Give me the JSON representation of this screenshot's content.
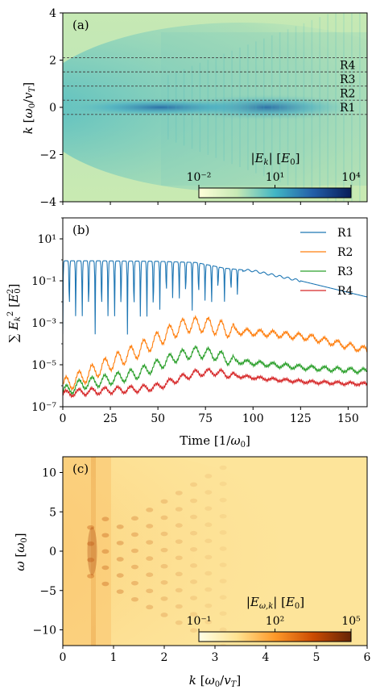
{
  "chart_data": [
    {
      "type": "heatmap",
      "panel_label": "(a)",
      "xlabel": "",
      "ylabel": "k [ω0/vT]",
      "ylim": [
        -4,
        4
      ],
      "xlim": [
        0,
        160
      ],
      "yticks": [
        "−4",
        "−2",
        "0",
        "2",
        "4"
      ],
      "colorbar": {
        "label": "|Ek| [E0]",
        "ticks": [
          "10⁻²",
          "10¹",
          "10⁴"
        ],
        "range_log10": [
          -2,
          4
        ],
        "colormap": "YlGnBu"
      },
      "regions": [
        {
          "name": "R1",
          "k_bounds": [
            -0.3,
            0.3
          ]
        },
        {
          "name": "R2",
          "k_bounds": [
            0.3,
            0.9
          ]
        },
        {
          "name": "R3",
          "k_bounds": [
            0.9,
            1.5
          ]
        },
        {
          "name": "R4",
          "k_bounds": [
            1.5,
            2.1
          ]
        }
      ],
      "dashed_lines_k": [
        2.1,
        1.5,
        0.9,
        0.3,
        -0.3
      ]
    },
    {
      "type": "line",
      "panel_label": "(b)",
      "xlabel": "Time [1/ω0]",
      "ylabel": "Σ Ek² [E0²]",
      "ylog": true,
      "ylim": [
        1e-07,
        100
      ],
      "xlim": [
        0,
        160
      ],
      "xticks": [
        "0",
        "25",
        "50",
        "75",
        "100",
        "125",
        "150"
      ],
      "xtick_values": [
        0,
        25,
        50,
        75,
        100,
        125,
        150
      ],
      "yticks": [
        "10⁻⁷",
        "10⁻⁵",
        "10⁻³",
        "10⁻¹",
        "10¹"
      ],
      "legend_position": "top-right",
      "series": [
        {
          "name": "R1",
          "color": "#1f77b4",
          "x": [
            0,
            20,
            50,
            70,
            85,
            100,
            125,
            160
          ],
          "y": [
            0.9,
            0.9,
            0.85,
            0.75,
            0.4,
            0.3,
            0.1,
            0.017
          ]
        },
        {
          "name": "R2",
          "color": "#ff7f0e",
          "x": [
            0,
            10,
            25,
            40,
            55,
            65,
            75,
            90,
            110,
            130,
            160
          ],
          "y": [
            1e-06,
            2.5e-06,
            1.2e-05,
            5e-05,
            0.0003,
            0.0008,
            0.0008,
            0.0004,
            0.0003,
            0.0002,
            5e-05
          ]
        },
        {
          "name": "R3",
          "color": "#2ca02c",
          "x": [
            0,
            10,
            25,
            40,
            50,
            60,
            70,
            80,
            90,
            110,
            130,
            160
          ],
          "y": [
            5e-07,
            1.2e-06,
            2e-06,
            4e-06,
            1e-05,
            2.5e-05,
            4e-05,
            3e-05,
            1.5e-05,
            1e-05,
            7e-06,
            5e-06
          ]
        },
        {
          "name": "R4",
          "color": "#d62728",
          "x": [
            0,
            10,
            25,
            40,
            50,
            60,
            70,
            80,
            90,
            110,
            130,
            160
          ],
          "y": [
            4e-07,
            5e-07,
            6e-07,
            7e-07,
            9e-07,
            2e-06,
            4e-06,
            4.5e-06,
            3e-06,
            2e-06,
            1.5e-06,
            1.2e-06
          ]
        }
      ]
    },
    {
      "type": "heatmap",
      "panel_label": "(c)",
      "xlabel": "k [ω0/vT]",
      "ylabel": "ω [ω0]",
      "xlim": [
        0,
        6
      ],
      "ylim": [
        -12,
        12
      ],
      "xticks": [
        "0",
        "1",
        "2",
        "3",
        "4",
        "5",
        "6"
      ],
      "xtick_values": [
        0,
        1,
        2,
        3,
        4,
        5,
        6
      ],
      "yticks": [
        "−10",
        "−5",
        "0",
        "5",
        "10"
      ],
      "ytick_values": [
        -10,
        -5,
        0,
        5,
        10
      ],
      "colorbar": {
        "label": "|Eω,k| [E0]",
        "ticks": [
          "10⁻¹",
          "10²",
          "10⁵"
        ],
        "range_log10": [
          -1,
          5
        ],
        "colormap": "YlOrBr"
      }
    }
  ]
}
